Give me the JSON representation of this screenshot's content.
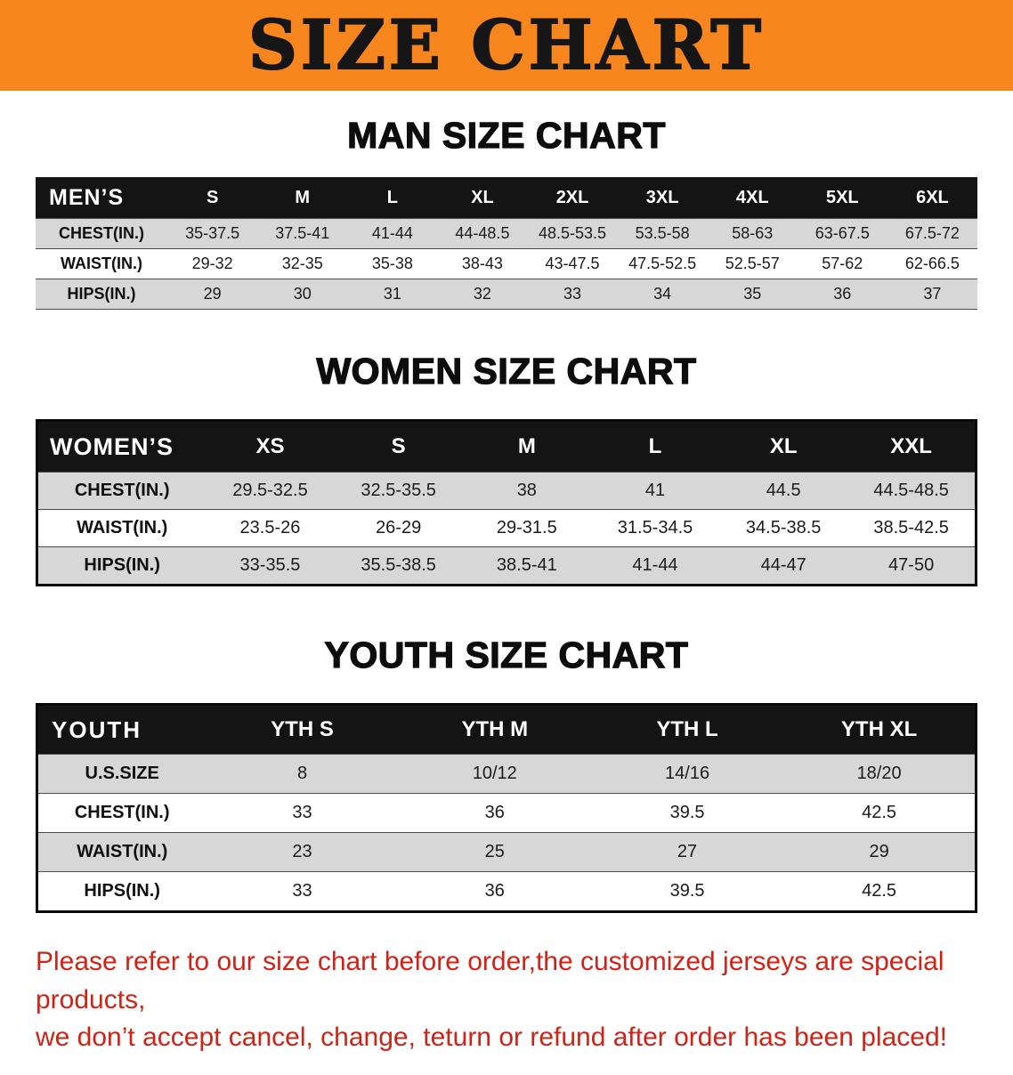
{
  "banner": {
    "title": "SIZE CHART",
    "bg_color": "#f6861d",
    "text_color": "#161616"
  },
  "sections": [
    {
      "id": "men",
      "heading": "MAN SIZE CHART",
      "header_label": "MEN’S",
      "columns": [
        "S",
        "M",
        "L",
        "XL",
        "2XL",
        "3XL",
        "4XL",
        "5XL",
        "6XL"
      ],
      "rows": [
        {
          "label": "CHEST(IN.)",
          "values": [
            "35-37.5",
            "37.5-41",
            "41-44",
            "44-48.5",
            "48.5-53.5",
            "53.5-58",
            "58-63",
            "63-67.5",
            "67.5-72"
          ]
        },
        {
          "label": "WAIST(IN.)",
          "values": [
            "29-32",
            "32-35",
            "35-38",
            "38-43",
            "43-47.5",
            "47.5-52.5",
            "52.5-57",
            "57-62",
            "62-66.5"
          ]
        },
        {
          "label": "HIPS(IN.)",
          "values": [
            "29",
            "30",
            "31",
            "32",
            "33",
            "34",
            "35",
            "36",
            "37"
          ]
        }
      ]
    },
    {
      "id": "women",
      "heading": "WOMEN SIZE CHART",
      "header_label": "WOMEN’S",
      "columns": [
        "XS",
        "S",
        "M",
        "L",
        "XL",
        "XXL"
      ],
      "rows": [
        {
          "label": "CHEST(IN.)",
          "values": [
            "29.5-32.5",
            "32.5-35.5",
            "38",
            "41",
            "44.5",
            "44.5-48.5"
          ]
        },
        {
          "label": "WAIST(IN.)",
          "values": [
            "23.5-26",
            "26-29",
            "29-31.5",
            "31.5-34.5",
            "34.5-38.5",
            "38.5-42.5"
          ]
        },
        {
          "label": "HIPS(IN.)",
          "values": [
            "33-35.5",
            "35.5-38.5",
            "38.5-41",
            "41-44",
            "44-47",
            "47-50"
          ]
        }
      ]
    },
    {
      "id": "youth",
      "heading": "YOUTH SIZE CHART",
      "header_label": "YOUTH",
      "columns": [
        "YTH S",
        "YTH M",
        "YTH L",
        "YTH XL"
      ],
      "rows": [
        {
          "label": "U.S.SIZE",
          "values": [
            "8",
            "10/12",
            "14/16",
            "18/20"
          ]
        },
        {
          "label": "CHEST(IN.)",
          "values": [
            "33",
            "36",
            "39.5",
            "42.5"
          ]
        },
        {
          "label": "WAIST(IN.)",
          "values": [
            "23",
            "25",
            "27",
            "29"
          ]
        },
        {
          "label": "HIPS(IN.)",
          "values": [
            "33",
            "36",
            "39.5",
            "42.5"
          ]
        }
      ]
    }
  ],
  "disclaimer": {
    "text_color": "#ce2417",
    "line1": "Please refer to our size chart before order,the customized jerseys are special products,",
    "line2": "we don’t accept cancel, change, teturn or refund after order has been placed!"
  }
}
